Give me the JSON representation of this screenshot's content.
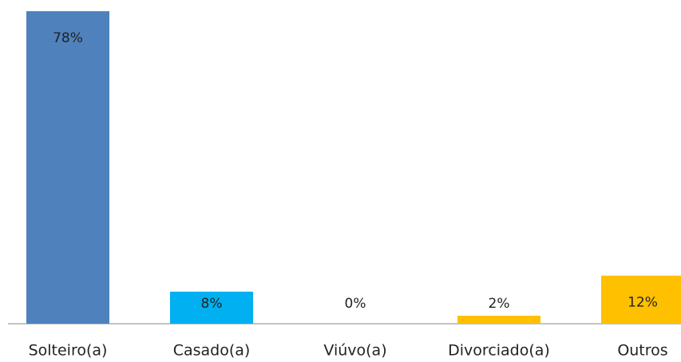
{
  "chart_data": {
    "type": "bar",
    "categories": [
      "Solteiro(a)",
      "Casado(a)",
      "Viúvo(a)",
      "Divorciado(a)",
      "Outros"
    ],
    "values": [
      78,
      8,
      0,
      2,
      12
    ],
    "value_labels": [
      "78%",
      "8%",
      "0%",
      "2%",
      "12%"
    ],
    "colors": [
      "#4f81bd",
      "#00b0f0",
      "#00b0f0",
      "#ffc000",
      "#ffc000"
    ],
    "ylim": [
      0,
      80
    ],
    "grid": false
  }
}
